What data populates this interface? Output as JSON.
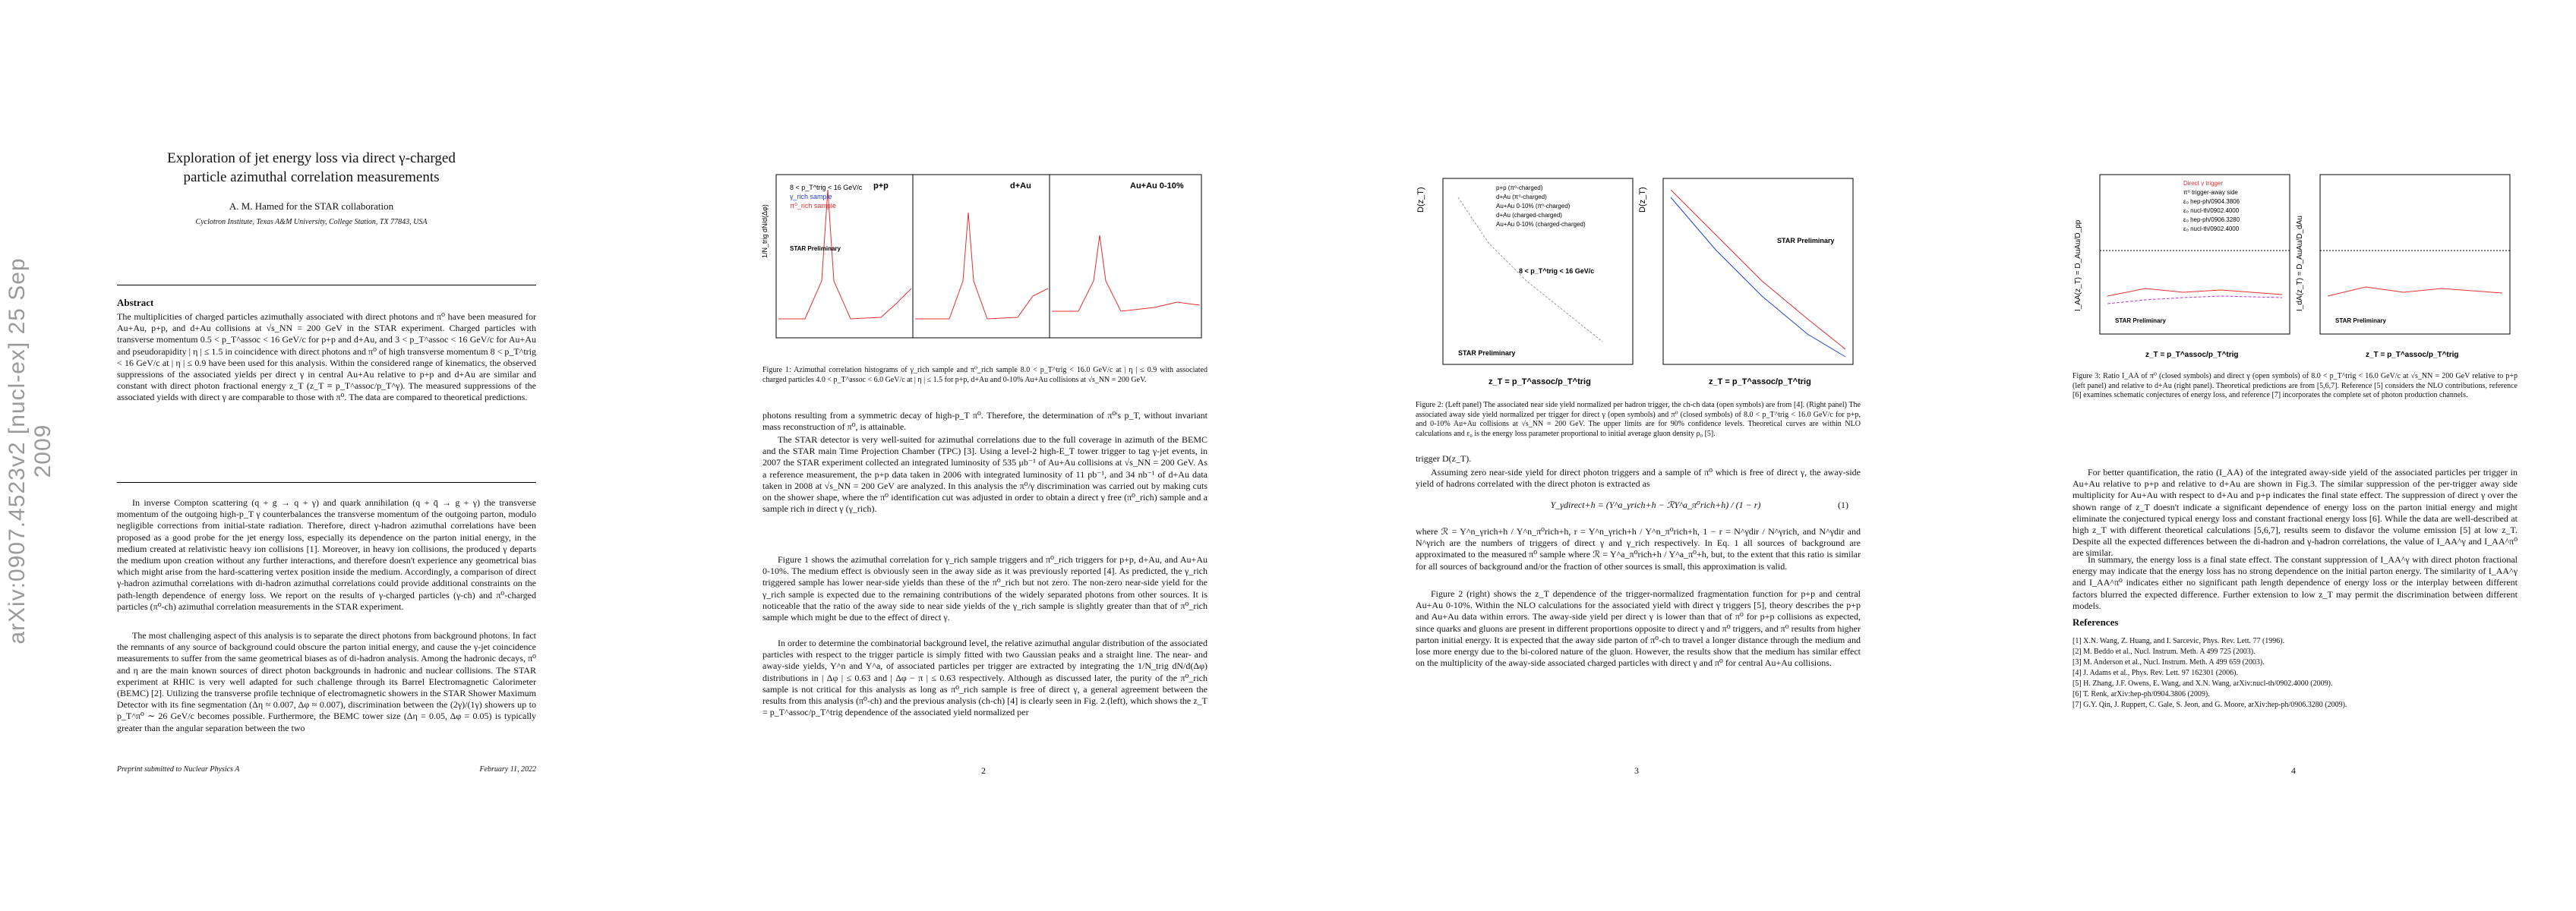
{
  "arxiv_stamp": "arXiv:0907.4523v2  [nucl-ex]  25 Sep 2009",
  "page1": {
    "title": "Exploration of jet energy loss via direct γ-charged particle azimuthal correlation measurements",
    "author": "A. M. Hamed for the STAR collaboration",
    "affiliation": "Cyclotron Institute, Texas A&M University, College Station, TX 77843, USA",
    "abstract_heading": "Abstract",
    "abstract": "The multiplicities of charged particles azimuthally associated with direct photons and π⁰ have been measured for Au+Au, p+p, and d+Au collisions at √s_NN = 200 GeV in the STAR experiment. Charged particles with transverse momentum 0.5 < p_T^assoc < 16 GeV/c for p+p and d+Au, and 3 < p_T^assoc < 16 GeV/c for Au+Au and pseudorapidity | η | ≤ 1.5 in coincidence with direct photons and π⁰ of high transverse momentum 8 < p_T^trig < 16 GeV/c at | η | ≤ 0.9 have been used for this analysis. Within the considered range of kinematics, the observed suppressions of the associated yields per direct γ in central Au+Au relative to p+p and d+Au are similar and constant with direct photon fractional energy z_T (z_T ≡ p_T^assoc/p_T^γ). The measured suppressions of the associated yields with direct γ are comparable to those with π⁰. The data are compared to theoretical predictions.",
    "para1": "In inverse Compton scattering (q + g → q + γ) and quark annihilation (q + q̄ → g + γ) the transverse momentum of the outgoing high-p_T γ counterbalances the transverse momentum of the outgoing parton, modulo negligible corrections from initial-state radiation. Therefore, direct γ-hadron azimuthal correlations have been proposed as a good probe for the jet energy loss, especially its dependence on the parton initial energy, in the medium created at relativistic heavy ion collisions [1]. Moreover, in heavy ion collisions, the produced γ departs the medium upon creation without any further interactions, and therefore doesn't experience any geometrical bias which might arise from the hard-scattering vertex position inside the medium. Accordingly, a comparison of direct γ-hadron azimuthal correlations with di-hadron azimuthal correlations could provide additional constraints on the path-length dependence of energy loss. We report on the results of γ-charged particles (γ-ch) and π⁰-charged particles (π⁰-ch) azimuthal correlation measurements in the STAR experiment.",
    "para2": "The most challenging aspect of this analysis is to separate the direct photons from background photons. In fact the remnants of any source of background could obscure the parton initial energy, and cause the γ-jet coincidence measurements to suffer from the same geometrical biases as of di-hadron analysis. Among the hadronic decays, π⁰ and η are the main known sources of direct photon backgrounds in hadronic and nuclear collisions. The STAR experiment at RHIC is very well adapted for such challenge through its Barrel Electromagnetic Calorimeter (BEMC) [2]. Utilizing the transverse profile technique of electromagnetic showers in the STAR Shower Maximum Detector with its fine segmentation (Δη ≈ 0.007, Δφ ≈ 0.007), discrimination between the (2γ)/(1γ) showers up to p_T^π⁰ ∼ 26 GeV/c becomes possible. Furthermore, the BEMC tower size (Δη = 0.05, Δφ = 0.05) is typically greater than the angular separation between the two",
    "footer_left": "Preprint submitted to Nuclear Physics A",
    "footer_right": "February 11, 2022"
  },
  "page2": {
    "fig_title_panels": [
      "p+p",
      "d+Au",
      "Au+Au 0-10%"
    ],
    "fig_legend": [
      "8 < p_T^trig < 16 GeV/c",
      "γ_rich sample",
      "π⁰_rich sample"
    ],
    "fig_star": "STAR Preliminary",
    "fig_ylabel": "1/N_trig dN/d(Δφ)",
    "caption": "Figure 1: Azimuthal correlation histograms of γ_rich sample and π⁰_rich sample 8.0 < p_T^trig < 16.0 GeV/c at | η | ≤ 0.9 with associated charged particles 4.0 < p_T^assoc < 6.0 GeV/c at | η | ≤ 1.5 for p+p, d+Au and 0-10% Au+Au collisions at √s_NN = 200 GeV.",
    "para_a": "photons resulting from a symmetric decay of high-p_T π⁰. Therefore, the determination of π⁰'s p_T, without invariant mass reconstruction of π⁰, is attainable.",
    "para_b": "The STAR detector is very well-suited for azimuthal correlations due to the full coverage in azimuth of the BEMC and the STAR main Time Projection Chamber (TPC) [3]. Using a level-2 high-E_T tower trigger to tag γ-jet events, in 2007 the STAR experiment collected an integrated luminosity of 535 μb⁻¹ of Au+Au collisions at √s_NN = 200 GeV. As a reference measurement, the p+p data taken in 2006 with integrated luminosity of 11 pb⁻¹, and 34 nb⁻¹ of d+Au data taken in 2008 at √s_NN = 200 GeV are analyzed. In this analysis the π⁰/γ discrimination was carried out by making cuts on the shower shape, where the π⁰ identification cut was adjusted in order to obtain a direct γ free (π⁰_rich) sample and a sample rich in direct γ (γ_rich).",
    "para_c": "Figure 1 shows the azimuthal correlation for γ_rich sample triggers and π⁰_rich triggers for p+p, d+Au, and Au+Au 0-10%. The medium effect is obviously seen in the away side as it was previously reported [4]. As predicted, the γ_rich triggered sample has lower near-side yields than these of the π⁰_rich but not zero. The non-zero near-side yield for the γ_rich sample is expected due to the remaining contributions of the widely separated photons from other sources. It is noticeable that the ratio of the away side to near side yields of the γ_rich sample is slightly greater than that of π⁰_rich sample which might be due to the effect of direct γ.",
    "para_d": "In order to determine the combinatorial background level, the relative azimuthal angular distribution of the associated particles with respect to the trigger particle is simply fitted with two Gaussian peaks and a straight line. The near- and away-side yields, Y^n and Y^a, of associated particles per trigger are extracted by integrating the 1/N_trig dN/d(Δφ) distributions in | Δφ | ≤ 0.63 and | Δφ − π | ≤ 0.63 respectively. Although as discussed later, the purity of the π⁰_rich sample is not critical for this analysis as long as π⁰_rich sample is free of direct γ, a general agreement between the results from this analysis (π⁰-ch) and the previous analysis (ch-ch) [4] is clearly seen in Fig. 2.(left), which shows the z_T = p_T^assoc/p_T^trig dependence of the associated yield normalized per",
    "page_num": "2"
  },
  "page3": {
    "left_legend": [
      "p+p (π⁰-charged)",
      "d+Au (π⁰-charged)",
      "Au+Au 0-10% (π⁰-charged)",
      "d+Au (charged-charged)",
      "Au+Au 0-10% (charged-charged)"
    ],
    "left_range": "8 < p_T^trig < 16 GeV/c",
    "left_star": "STAR Preliminary",
    "ylabel": "D(z_T)",
    "xlabel": "z_T = p_T^assoc/p_T^trig",
    "right_star": "STAR Preliminary",
    "caption": "Figure 2: (Left panel) The associated near side yield normalized per hadron trigger, the ch-ch data (open symbols) are from [4]. (Right panel) The associated away side yield normalized per trigger for direct γ (open symbols) and π⁰ (closed symbols) of 8.0 < p_T^trig < 16.0 GeV/c for p+p, and 0-10% Au+Au collisions at √s_NN = 200 GeV. The upper limits are for 90% confidence levels. Theoretical curves are within NLO calculations and ε₀ is the energy loss parameter proportional to initial average gluon density ρ₀ [5].",
    "line_a": "trigger D(z_T).",
    "para_a": "Assuming zero near-side yield for direct photon triggers and a sample of π⁰ which is free of direct γ, the away-side yield of hadrons correlated with the direct photon is extracted as",
    "equation": "Y_γdirect+h = (Y^a_γrich+h − ℛY^a_π⁰rich+h) / (1 − r)",
    "eq_num": "(1)",
    "para_b": "where ℛ = Y^n_γrich+h / Y^n_π⁰rich+h, r = Y^n_γrich+h / Y^n_π⁰rich+h, 1 − r = N^γdir / N^γrich, and N^γdir and N^γrich are the numbers of triggers of direct γ and γ_rich respectively. In Eq. 1 all sources of background are approximated to the measured π⁰ sample where ℛ = Y^a_π⁰rich+h / Y^a_π⁰+h, but, to the extent that this ratio is similar for all sources of background and/or the fraction of other sources is small, this approximation is valid.",
    "para_c": "Figure 2 (right) shows the z_T dependence of the trigger-normalized fragmentation function for p+p and central Au+Au 0-10%. Within the NLO calculations for the associated yield with direct γ triggers [5], theory describes the p+p and Au+Au data within errors. The away-side yield per direct γ is lower than that of π⁰ for p+p collisions as expected, since quarks and gluons are present in different proportions opposite to direct γ and π⁰ triggers, and π⁰ results from higher parton initial energy. It is expected that the away side parton of π⁰-ch to travel a longer distance through the medium and lose more energy due to the bi-colored nature of the gluon. However, the results show that the medium has similar effect on the multiplicity of the away-side associated charged particles with direct γ and π⁰ for central Au+Au collisions.",
    "page_num": "3"
  },
  "page4": {
    "left_legend": [
      "Direct γ trigger",
      "π⁰ trigger-away side",
      "ε₀ hep-ph/0904.3806",
      "ε₀ nucl-th/0902.4000",
      "ε₀ hep-ph/0906.3280",
      "ε₀ nucl-th/0902.4000"
    ],
    "left_ylabel": "I_AA(z_T) = D_AuAu/D_pp",
    "right_ylabel": "I_dA(z_T) = D_AuAu/D_dAu",
    "xlabel": "z_T = p_T^assoc/p_T^trig",
    "star": "STAR Preliminary",
    "caption": "Figure 3: Ratio I_AA of π⁰ (closed symbols) and direct γ (open symbols) of 8.0 < p_T^trig < 16.0 GeV/c at √s_NN = 200 GeV relative to p+p (left panel) and relative to d+Au (right panel). Theoretical predictions are from [5,6,7]. Reference [5] considers the NLO contributions, reference [6] examines schematic conjectures of energy loss, and reference [7] incorporates the complete set of photon production channels.",
    "para_a": "For better quantification, the ratio (I_AA) of the integrated away-side yield of the associated particles per trigger in Au+Au relative to p+p and relative to d+Au are shown in Fig.3. The similar suppression of the per-trigger away side multiplicity for Au+Au with respect to d+Au and p+p indicates the final state effect. The suppression of direct γ over the shown range of z_T doesn't indicate a significant dependence of energy loss on the parton initial energy and might eliminate the conjectured typical energy loss and constant fractional energy loss [6]. While the data are well-described at high z_T with different theoretical calculations [5,6,7], results seem to disfavor the volume emission [5] at low z_T. Despite all the expected differences between the di-hadron and γ-hadron correlations, the value of I_AA^γ and I_AA^π⁰ are similar.",
    "para_b": "In summary, the energy loss is a final state effect. The constant suppression of I_AA^γ with direct photon fractional energy may indicate that the energy loss has no strong dependence on the initial parton energy. The similarity of I_AA^γ and I_AA^π⁰ indicates either no significant path length dependence of energy loss or the interplay between different factors blurred the expected difference. Further extension to low z_T may permit the discrimination between different models.",
    "references_heading": "References",
    "references": [
      "[1]  X.N. Wang, Z. Huang, and I. Sarcevic, Phys. Rev. Lett. 77 (1996).",
      "[2]  M. Beddo et al., Nucl. Instrum. Meth. A 499 725 (2003).",
      "[3]  M. Anderson et al., Nucl. Instrum. Meth. A 499 659 (2003).",
      "[4]  J. Adams et al., Phys. Rev. Lett. 97 162301 (2006).",
      "[5]  H. Zhang, J.F. Owens, E. Wang, and X.N. Wang, arXiv:nucl-th/0902.4000 (2009).",
      "[6]  T. Renk, arXiv:hep-ph/0904.3806 (2009).",
      "[7]  G.Y. Qin, J. Ruppert, C. Gale, S. Jeon, and G. Moore, arXiv:hep-ph/0906.3280 (2009)."
    ],
    "page_num": "4"
  }
}
